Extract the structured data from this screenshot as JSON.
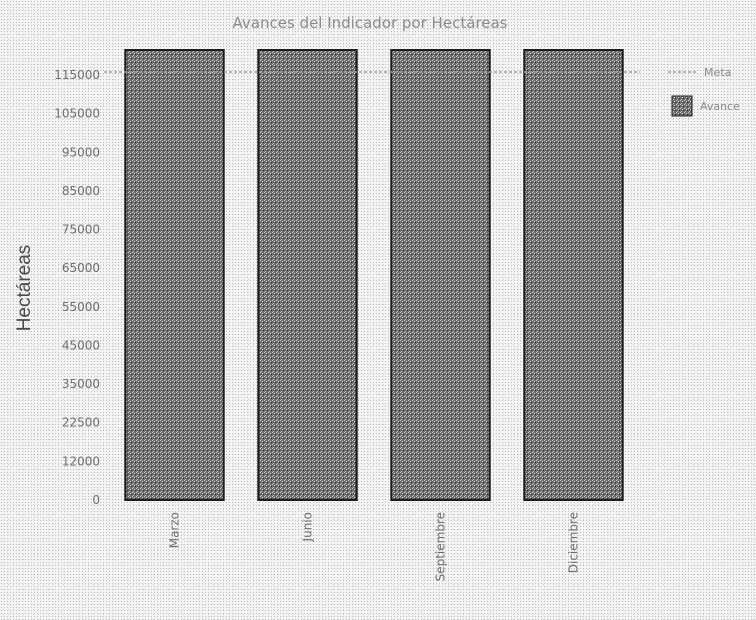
{
  "chart_data": {
    "type": "bar",
    "title": "Avances del Indicador por Hectáreas",
    "xlabel": "",
    "ylabel": "Hectáreas",
    "categories": [
      "Marzo",
      "Junio",
      "Septiembre",
      "Diciembre"
    ],
    "series": [
      {
        "name": "Avance",
        "values": [
          115000,
          115000,
          115000,
          115000
        ]
      }
    ],
    "meta": {
      "name": "Meta",
      "value": 110000
    },
    "y_ticks": [
      "0",
      "12000",
      "22500",
      "35000",
      "45000",
      "55000",
      "65000",
      "75000",
      "85000",
      "95000",
      "105000",
      "115000"
    ],
    "ylim": [
      0,
      115000
    ],
    "grid": false,
    "legend_position": "right"
  },
  "colors": {
    "bar_fill": "#6b6b6b",
    "bar_stroke": "#1c1c1c",
    "meta_line": "#a0a0a0",
    "legend_swatch": "#6b6b6b"
  }
}
